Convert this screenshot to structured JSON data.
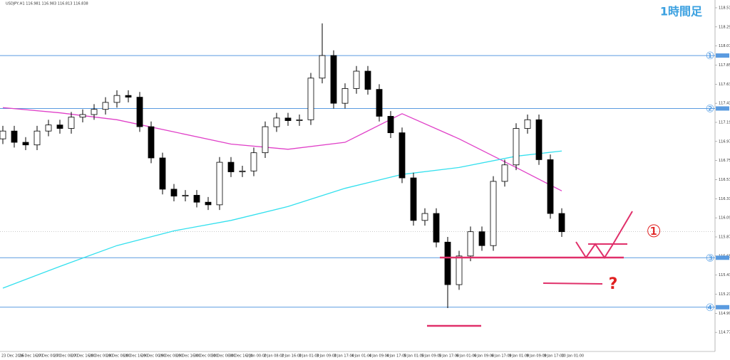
{
  "chart_data": {
    "type": "candlestick",
    "symbol_info": "USDJPY,H1 116.981 116.983 116.813 116.838",
    "title": "1時間足",
    "annotations": [
      "①",
      "?"
    ],
    "ylim": [
      114.55,
      118.6
    ],
    "yticks": [
      118.51,
      118.29,
      118.07,
      117.85,
      117.63,
      117.41,
      117.19,
      116.97,
      116.75,
      116.53,
      116.31,
      116.09,
      115.87,
      115.65,
      115.43,
      115.21,
      114.99,
      114.77
    ],
    "x_labels": [
      "23 Dec 2016",
      "26 Dec 16:00",
      "27 Dec 00:00",
      "27 Dec 08:00",
      "27 Dec 16:00",
      "28 Dec 00:00",
      "28 Dec 08:00",
      "28 Dec 16:00",
      "29 Dec 00:00",
      "29 Dec 08:00",
      "29 Dec 16:00",
      "30 Dec 00:00",
      "30 Dec 08:00",
      "30 Dec 16:00",
      "2 Jan 00:00",
      "2 Jan 08:00",
      "2 Jan 16:00",
      "3 Jan 01:00",
      "3 Jan 09:00",
      "3 Jan 17:00",
      "4 Jan 01:00",
      "4 Jan 09:00",
      "4 Jan 17:00",
      "5 Jan 01:00",
      "5 Jan 09:00",
      "5 Jan 17:00",
      "6 Jan 01:00",
      "6 Jan 09:00",
      "6 Jan 17:00",
      "9 Jan 01:00",
      "9 Jan 09:00",
      "9 Jan 17:00",
      "10 Jan 01:00"
    ],
    "open": [
      117.0,
      117.09,
      116.96,
      116.93,
      117.09,
      117.16,
      117.12,
      117.25,
      117.28,
      117.34,
      117.42,
      117.5,
      117.48,
      117.14,
      116.78,
      116.42,
      116.34,
      116.35,
      116.27,
      116.24,
      116.73,
      116.62,
      116.63,
      116.84,
      117.14,
      117.24,
      117.21,
      117.22,
      117.7,
      117.96,
      117.41,
      117.58,
      117.78,
      117.57,
      117.26,
      117.07,
      116.55,
      116.06,
      116.14,
      115.81,
      115.32,
      115.65,
      115.93,
      115.77,
      116.51,
      116.7,
      117.12,
      117.22,
      116.76,
      116.14
    ],
    "high": [
      117.15,
      117.15,
      117.02,
      117.15,
      117.22,
      117.22,
      117.31,
      117.34,
      117.4,
      117.48,
      117.56,
      117.56,
      117.54,
      117.2,
      116.84,
      116.48,
      116.41,
      116.41,
      116.33,
      116.79,
      116.79,
      116.69,
      116.9,
      117.2,
      117.3,
      117.3,
      117.28,
      117.76,
      118.33,
      118.02,
      117.64,
      117.84,
      117.84,
      117.63,
      117.32,
      117.13,
      116.61,
      116.2,
      116.2,
      115.87,
      115.71,
      115.99,
      115.99,
      116.57,
      116.76,
      117.18,
      117.28,
      117.28,
      116.82,
      116.2
    ],
    "low": [
      116.94,
      116.9,
      116.87,
      116.87,
      117.03,
      117.06,
      117.06,
      117.19,
      117.22,
      117.28,
      117.36,
      117.42,
      117.08,
      116.72,
      116.36,
      116.28,
      116.28,
      116.21,
      116.18,
      116.18,
      116.56,
      116.56,
      116.57,
      116.78,
      117.08,
      117.15,
      117.15,
      117.16,
      117.64,
      117.35,
      117.35,
      117.52,
      117.51,
      117.2,
      117.01,
      116.49,
      116.0,
      116.0,
      115.75,
      115.05,
      115.26,
      115.59,
      115.71,
      115.71,
      116.45,
      116.64,
      117.06,
      116.7,
      116.08,
      115.87
    ],
    "close": [
      117.09,
      116.96,
      116.93,
      117.09,
      117.16,
      117.12,
      117.25,
      117.28,
      117.34,
      117.42,
      117.5,
      117.48,
      117.14,
      116.78,
      116.42,
      116.34,
      116.35,
      116.27,
      116.24,
      116.73,
      116.62,
      116.63,
      116.84,
      117.14,
      117.24,
      117.21,
      117.22,
      117.7,
      117.96,
      117.41,
      117.58,
      117.78,
      117.57,
      117.26,
      117.07,
      116.55,
      116.06,
      116.14,
      115.81,
      115.32,
      115.65,
      115.93,
      115.77,
      116.51,
      116.7,
      117.12,
      117.22,
      116.76,
      116.14,
      115.93
    ],
    "overlays": [
      {
        "color": "#e040c8",
        "x": [
          0,
          5,
          10,
          15,
          20,
          25,
          30,
          35,
          40,
          45,
          49
        ],
        "values": [
          117.36,
          117.3,
          117.22,
          117.08,
          116.94,
          116.88,
          116.96,
          117.29,
          117.0,
          116.67,
          116.4
        ]
      },
      {
        "color": "#33e0ee",
        "x": [
          0,
          5,
          10,
          15,
          20,
          25,
          30,
          35,
          40,
          45,
          49
        ],
        "values": [
          115.28,
          115.53,
          115.77,
          115.94,
          116.06,
          116.22,
          116.43,
          116.59,
          116.67,
          116.8,
          116.86
        ]
      }
    ],
    "levels": [
      {
        "value": 117.96,
        "label": "①"
      },
      {
        "value": 117.35,
        "label": "②"
      },
      {
        "value": 115.63,
        "label": "③"
      },
      {
        "value": 115.06,
        "label": "④"
      }
    ],
    "current_price": 115.93
  }
}
